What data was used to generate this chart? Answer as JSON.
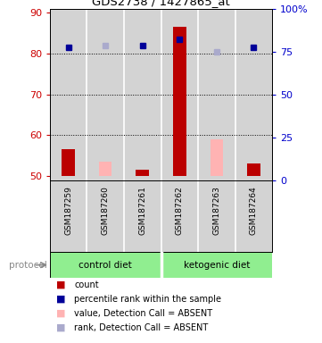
{
  "title": "GDS2738 / 1427865_at",
  "samples": [
    "GSM187259",
    "GSM187260",
    "GSM187261",
    "GSM187262",
    "GSM187263",
    "GSM187264"
  ],
  "ylim_left": [
    49,
    91
  ],
  "ylim_right": [
    0,
    100
  ],
  "yticks_left": [
    50,
    60,
    70,
    80,
    90
  ],
  "yticks_right": [
    0,
    25,
    50,
    75,
    100
  ],
  "ytick_labels_right": [
    "0",
    "25",
    "50",
    "75",
    "100%"
  ],
  "red_bars_present": [
    56.5,
    null,
    51.5,
    86.5,
    null,
    53.0
  ],
  "red_bars_absent": [
    null,
    53.5,
    null,
    null,
    59.0,
    null
  ],
  "blue_sq_present": [
    81.5,
    null,
    82.0,
    83.5,
    null,
    81.5
  ],
  "blue_sq_absent": [
    null,
    82.0,
    null,
    null,
    80.5,
    null
  ],
  "bar_bottom": 50,
  "bar_width": 0.35,
  "color_red": "#BB0000",
  "color_pink": "#FFB3B3",
  "color_blue": "#000099",
  "color_blue_absent": "#AAAACC",
  "color_sample_bg": "#D3D3D3",
  "color_protocol_green": "#90EE90",
  "grid_dotted_at": [
    60,
    70,
    80
  ],
  "legend_items": [
    {
      "color": "#BB0000",
      "label": "count",
      "marker": "s"
    },
    {
      "color": "#000099",
      "label": "percentile rank within the sample",
      "marker": "s"
    },
    {
      "color": "#FFB3B3",
      "label": "value, Detection Call = ABSENT",
      "marker": "s"
    },
    {
      "color": "#AAAACC",
      "label": "rank, Detection Call = ABSENT",
      "marker": "s"
    }
  ]
}
